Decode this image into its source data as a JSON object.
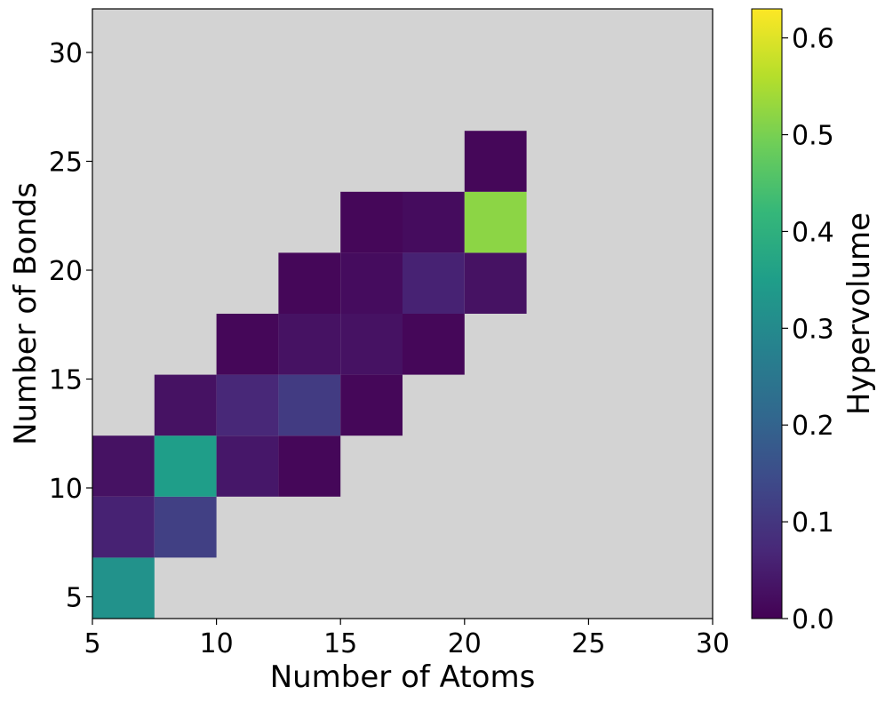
{
  "chart_data": {
    "type": "heatmap",
    "title": "",
    "xlabel": "Number of Atoms",
    "ylabel": "Number of Bonds",
    "colorbar_label": "Hypervolume",
    "xlim": [
      5,
      30
    ],
    "ylim": [
      4,
      32
    ],
    "xticks": [
      5,
      10,
      15,
      20,
      25,
      30
    ],
    "yticks": [
      5,
      10,
      15,
      20,
      25,
      30
    ],
    "colorbar_range": [
      0,
      0.63
    ],
    "colorbar_ticks": [
      0.0,
      0.1,
      0.2,
      0.3,
      0.4,
      0.5,
      0.6
    ],
    "background_color": "#d3d3d3",
    "colormap": "viridis",
    "bin_width_x": 2.5,
    "bin_height_y": 2.8,
    "cells": [
      {
        "x": 5.0,
        "y": 4.0,
        "value": 0.32
      },
      {
        "x": 5.0,
        "y": 6.8,
        "value": 0.06
      },
      {
        "x": 7.5,
        "y": 6.8,
        "value": 0.12
      },
      {
        "x": 5.0,
        "y": 9.6,
        "value": 0.03
      },
      {
        "x": 7.5,
        "y": 9.6,
        "value": 0.35
      },
      {
        "x": 10.0,
        "y": 9.6,
        "value": 0.04
      },
      {
        "x": 12.5,
        "y": 9.6,
        "value": 0.01
      },
      {
        "x": 7.5,
        "y": 12.4,
        "value": 0.03
      },
      {
        "x": 10.0,
        "y": 12.4,
        "value": 0.07
      },
      {
        "x": 12.5,
        "y": 12.4,
        "value": 0.11
      },
      {
        "x": 15.0,
        "y": 12.4,
        "value": 0.01
      },
      {
        "x": 10.0,
        "y": 15.2,
        "value": 0.01
      },
      {
        "x": 12.5,
        "y": 15.2,
        "value": 0.03
      },
      {
        "x": 15.0,
        "y": 15.2,
        "value": 0.03
      },
      {
        "x": 17.5,
        "y": 15.2,
        "value": 0.01
      },
      {
        "x": 12.5,
        "y": 18.0,
        "value": 0.01
      },
      {
        "x": 15.0,
        "y": 18.0,
        "value": 0.02
      },
      {
        "x": 17.5,
        "y": 18.0,
        "value": 0.06
      },
      {
        "x": 20.0,
        "y": 18.0,
        "value": 0.03
      },
      {
        "x": 15.0,
        "y": 20.8,
        "value": 0.01
      },
      {
        "x": 17.5,
        "y": 20.8,
        "value": 0.02
      },
      {
        "x": 20.0,
        "y": 20.8,
        "value": 0.52
      },
      {
        "x": 20.0,
        "y": 23.6,
        "value": 0.01
      }
    ]
  }
}
